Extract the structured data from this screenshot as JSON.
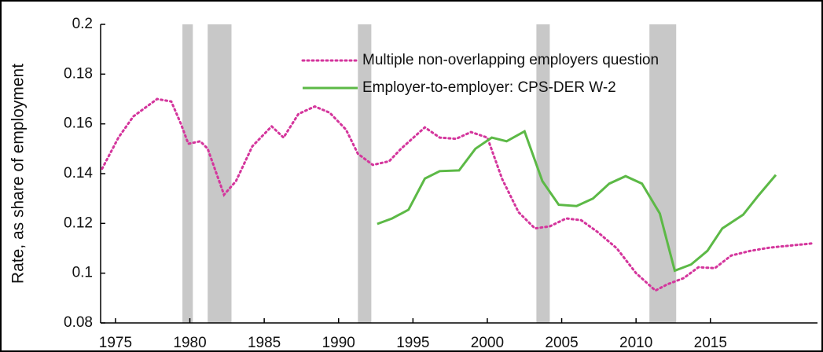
{
  "chart_data": {
    "type": "line",
    "y_label": "Rate, as share of employment",
    "xlim": [
      1974,
      2022.2
    ],
    "xticks": [
      1975,
      1980,
      1985,
      1990,
      1995,
      2000,
      2005,
      2010,
      2015
    ],
    "ylim": [
      0.08,
      0.2
    ],
    "yticks": [
      0.08,
      0.1,
      0.12,
      0.14,
      0.16,
      0.18,
      0.2
    ],
    "legend": "top-right",
    "shaded_periods": [
      [
        1979.5,
        1980.2
      ],
      [
        1981.2,
        1982.8
      ],
      [
        1991.3,
        1992.2
      ],
      [
        2003.3,
        2004.2
      ],
      [
        2010.9,
        2012.7
      ]
    ],
    "series": [
      {
        "name": "Multiple non-overlapping employers question",
        "color": "#d4359c",
        "style": "dotted",
        "x": [
          1974.1,
          1975.2,
          1976.2,
          1977.8,
          1978.75,
          1979.4,
          1979.9,
          1980.7,
          1981.2,
          1982.3,
          1983.1,
          1984.2,
          1985.5,
          1986.3,
          1987.3,
          1988.4,
          1989.4,
          1990.5,
          1991.3,
          1992.3,
          1993.4,
          1994.2,
          1995.8,
          1996.8,
          1997.9,
          1998.9,
          2000.0,
          2001.0,
          2002.1,
          2003.2,
          2004.2,
          2005.3,
          2006.3,
          2007.4,
          2008.7,
          2010.0,
          2011.3,
          2012.1,
          2013.2,
          2014.2,
          2015.3,
          2016.4,
          2017.7,
          2019.0,
          2021.9
        ],
        "values": [
          0.142,
          0.1545,
          0.163,
          0.17,
          0.169,
          0.16,
          0.152,
          0.153,
          0.15,
          0.1315,
          0.137,
          0.151,
          0.159,
          0.1545,
          0.164,
          0.167,
          0.1645,
          0.1577,
          0.148,
          0.1435,
          0.145,
          0.15,
          0.1586,
          0.1545,
          0.154,
          0.1567,
          0.1545,
          0.1378,
          0.1245,
          0.118,
          0.1188,
          0.122,
          0.1213,
          0.1166,
          0.11,
          0.1,
          0.093,
          0.0955,
          0.098,
          0.1024,
          0.102,
          0.1071,
          0.109,
          0.1103,
          0.112
        ]
      },
      {
        "name": "Employer-to-employer: CPS-DER W-2",
        "color": "#5cb946",
        "style": "solid",
        "x": [
          1992.6,
          1993.6,
          1994.7,
          1995.8,
          1996.8,
          1998.1,
          1999.2,
          2000.3,
          2001.3,
          2002.5,
          2003.7,
          2004.8,
          2006.0,
          2007.1,
          2008.2,
          2009.3,
          2010.4,
          2011.6,
          2012.6,
          2013.7,
          2014.8,
          2015.8,
          2017.2,
          2018.2,
          2019.4
        ],
        "values": [
          0.1198,
          0.122,
          0.1255,
          0.138,
          0.141,
          0.1413,
          0.15,
          0.1545,
          0.153,
          0.157,
          0.137,
          0.1275,
          0.127,
          0.13,
          0.136,
          0.139,
          0.136,
          0.124,
          0.101,
          0.1035,
          0.109,
          0.118,
          0.1235,
          0.131,
          0.1395
        ]
      }
    ]
  }
}
